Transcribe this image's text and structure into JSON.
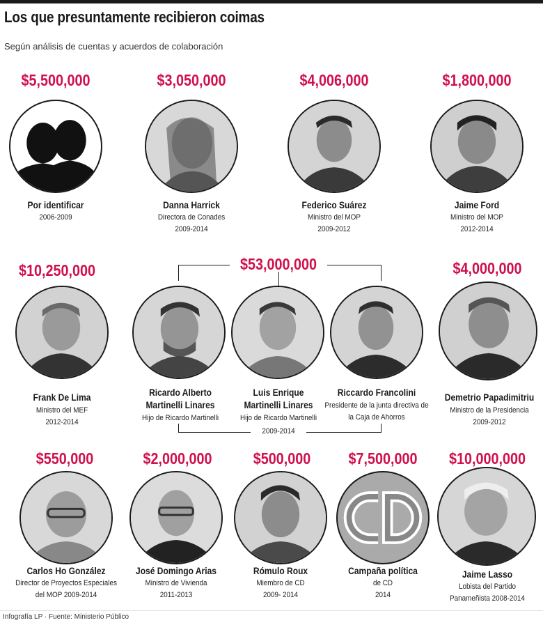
{
  "header": {
    "title": "Los que presuntamente recibieron coimas",
    "subtitle": "Según análisis de cuentas y acuerdos de colaboración"
  },
  "people": [
    {
      "amount": "$5,500,000",
      "name": "Por identificar",
      "role": "",
      "years": "2006-2009",
      "icon": "unknown-silhouette-icon"
    },
    {
      "amount": "$3,050,000",
      "name": "Danna Harrick",
      "role": "Directora de Conades",
      "years": "2009-2014"
    },
    {
      "amount": "$4,006,000",
      "name": "Federico Suárez",
      "role": "Ministro del MOP",
      "years": "2009-2012"
    },
    {
      "amount": "$1,800,000",
      "name": "Jaime Ford",
      "role": "Ministro del MOP",
      "years": "2012-2014"
    },
    {
      "amount": "$10,250,000",
      "name": "Frank De Lima",
      "role": "Ministro del MEF",
      "years": "2012-2014"
    },
    {
      "amount": "",
      "name_line1": "Ricardo Alberto",
      "name": "Martinelli Linares",
      "role": "Hijo de Ricardo Martinelli",
      "years": ""
    },
    {
      "amount": "",
      "name_line1": "Luis Enrique",
      "name": "Martinelli Linares",
      "role": "Hijo de Ricardo Martinelli",
      "years": ""
    },
    {
      "amount": "",
      "name": "Riccardo Francolini",
      "role": "Presidente de la junta directiva de",
      "role2": "la Caja de Ahorros",
      "years": ""
    },
    {
      "amount": "$4,000,000",
      "name": "Demetrio Papadimitriu",
      "role": "Ministro de la Presidencia",
      "years": "2009-2012"
    },
    {
      "amount": "$550,000",
      "name": "Carlos Ho González",
      "role": "Director de Proyectos Especiales",
      "years": "del MOP    2009-2014"
    },
    {
      "amount": "$2,000,000",
      "name": "José Domingo Arias",
      "role": "Ministro de Vivienda",
      "years": "2011-2013"
    },
    {
      "amount": "$500,000",
      "name": "Rómulo Roux",
      "role": "Miembro de CD",
      "years": "2009- 2014"
    },
    {
      "amount": "$7,500,000",
      "name": "Campaña política",
      "role": "de CD",
      "years": "2014",
      "logo_text": "CD"
    },
    {
      "amount": "$10,000,000",
      "name": "Jaime Lasso",
      "role": "Lobista del Partido",
      "years": "Panameñista  2008-2014"
    }
  ],
  "group": {
    "amount": "$53,000,000",
    "years": "2009-2014"
  },
  "footer": {
    "credit": "Infografía LP  ·  Fuente: Ministerio Público"
  },
  "colors": {
    "accent": "#d0104c",
    "text": "#1a1a1a"
  }
}
